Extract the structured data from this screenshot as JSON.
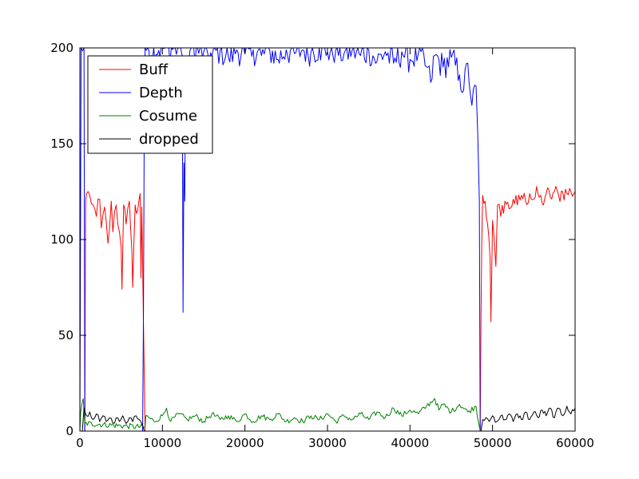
{
  "chart_data": {
    "type": "line",
    "xlim": [
      0,
      60000
    ],
    "ylim": [
      0,
      200
    ],
    "x_ticks": [
      0,
      10000,
      20000,
      30000,
      40000,
      50000,
      60000
    ],
    "y_ticks": [
      0,
      50,
      100,
      150,
      200
    ],
    "legend_position": "upper-left",
    "grid": false,
    "series": [
      {
        "name": "Buff",
        "color": "#ff0000",
        "points": [
          [
            600,
            0
          ],
          [
            700,
            120
          ],
          [
            800,
            124
          ],
          [
            1200,
            123
          ],
          [
            1600,
            118
          ],
          [
            2000,
            112
          ],
          [
            2400,
            121
          ],
          [
            2600,
            106
          ],
          [
            3000,
            117
          ],
          [
            3400,
            98
          ],
          [
            3800,
            120
          ],
          [
            4000,
            104
          ],
          [
            4400,
            118
          ],
          [
            4600,
            108
          ],
          [
            5000,
            96
          ],
          [
            5100,
            74
          ],
          [
            5300,
            118
          ],
          [
            5600,
            108
          ],
          [
            6000,
            120
          ],
          [
            6300,
            94
          ],
          [
            6400,
            75
          ],
          [
            6700,
            118
          ],
          [
            7000,
            115
          ],
          [
            7300,
            124
          ],
          [
            7400,
            80
          ],
          [
            7500,
            117
          ],
          [
            7700,
            57
          ],
          [
            7800,
            30
          ],
          [
            7900,
            0
          ],
          [
            48500,
            0
          ],
          [
            48600,
            60
          ],
          [
            48700,
            100
          ],
          [
            48800,
            123
          ],
          [
            49100,
            120
          ],
          [
            49400,
            108
          ],
          [
            49700,
            90
          ],
          [
            49800,
            57
          ],
          [
            50000,
            110
          ],
          [
            50200,
            100
          ],
          [
            50400,
            86
          ],
          [
            50600,
            118
          ],
          [
            51000,
            112
          ],
          [
            51500,
            120
          ],
          [
            52000,
            116
          ],
          [
            52500,
            121
          ],
          [
            53000,
            118
          ],
          [
            53500,
            123
          ],
          [
            54000,
            120
          ],
          [
            54500,
            124
          ],
          [
            55000,
            121
          ],
          [
            55500,
            124
          ],
          [
            56000,
            119
          ],
          [
            56500,
            124
          ],
          [
            57000,
            122
          ],
          [
            57500,
            125
          ],
          [
            58000,
            123
          ],
          [
            58500,
            125
          ],
          [
            59000,
            124
          ],
          [
            59500,
            125
          ],
          [
            60000,
            125
          ]
        ]
      },
      {
        "name": "Depth",
        "color": "#0000ff",
        "points": [
          [
            0,
            0
          ],
          [
            150,
            200
          ],
          [
            500,
            200
          ],
          [
            600,
            0
          ],
          [
            7600,
            0
          ],
          [
            7700,
            60
          ],
          [
            7800,
            160
          ],
          [
            7900,
            200
          ],
          [
            10000,
            200
          ],
          [
            12000,
            200
          ],
          [
            12400,
            196
          ],
          [
            12500,
            62
          ],
          [
            12600,
            140
          ],
          [
            12700,
            120
          ],
          [
            12800,
            175
          ],
          [
            13000,
            195
          ],
          [
            13500,
            200
          ],
          [
            15000,
            198
          ],
          [
            16000,
            196
          ],
          [
            17000,
            199
          ],
          [
            18000,
            195
          ],
          [
            19000,
            199
          ],
          [
            20000,
            197
          ],
          [
            21000,
            199
          ],
          [
            22000,
            196
          ],
          [
            23000,
            199
          ],
          [
            24000,
            194
          ],
          [
            25000,
            199
          ],
          [
            26000,
            197
          ],
          [
            27000,
            199
          ],
          [
            28000,
            198
          ],
          [
            29000,
            200
          ],
          [
            30000,
            198
          ],
          [
            31000,
            199
          ],
          [
            32000,
            197
          ],
          [
            33000,
            199
          ],
          [
            34000,
            196
          ],
          [
            35000,
            199
          ],
          [
            36000,
            193
          ],
          [
            37000,
            198
          ],
          [
            38000,
            192
          ],
          [
            39000,
            198
          ],
          [
            40000,
            194
          ],
          [
            41000,
            197
          ],
          [
            42000,
            190
          ],
          [
            42500,
            182
          ],
          [
            43000,
            196
          ],
          [
            44000,
            190
          ],
          [
            45000,
            195
          ],
          [
            46000,
            186
          ],
          [
            46500,
            178
          ],
          [
            47000,
            192
          ],
          [
            47500,
            170
          ],
          [
            48000,
            180
          ],
          [
            48200,
            156
          ],
          [
            48400,
            120
          ],
          [
            48500,
            0
          ]
        ]
      },
      {
        "name": "Cosume",
        "color": "#008000",
        "points": [
          [
            0,
            0
          ],
          [
            100,
            10
          ],
          [
            400,
            17
          ],
          [
            600,
            4
          ],
          [
            7900,
            2
          ],
          [
            8000,
            8
          ],
          [
            9000,
            5
          ],
          [
            10000,
            8
          ],
          [
            10500,
            12
          ],
          [
            11000,
            5
          ],
          [
            12000,
            9
          ],
          [
            13000,
            6
          ],
          [
            14000,
            8
          ],
          [
            15000,
            5
          ],
          [
            16000,
            9
          ],
          [
            17000,
            6
          ],
          [
            18000,
            8
          ],
          [
            19000,
            5
          ],
          [
            20000,
            9
          ],
          [
            21000,
            5
          ],
          [
            22000,
            8
          ],
          [
            23000,
            6
          ],
          [
            24000,
            9
          ],
          [
            25000,
            5
          ],
          [
            26000,
            7
          ],
          [
            27000,
            5
          ],
          [
            28000,
            8
          ],
          [
            29000,
            6
          ],
          [
            30000,
            9
          ],
          [
            31000,
            5
          ],
          [
            32000,
            8
          ],
          [
            33000,
            6
          ],
          [
            34000,
            9
          ],
          [
            35000,
            6
          ],
          [
            36000,
            10
          ],
          [
            37000,
            7
          ],
          [
            38000,
            12
          ],
          [
            39000,
            8
          ],
          [
            40000,
            11
          ],
          [
            41000,
            9
          ],
          [
            42000,
            13
          ],
          [
            43000,
            17
          ],
          [
            43500,
            11
          ],
          [
            44000,
            14
          ],
          [
            45000,
            10
          ],
          [
            46000,
            14
          ],
          [
            47000,
            10
          ],
          [
            48000,
            13
          ],
          [
            48500,
            0
          ]
        ]
      },
      {
        "name": "dropped",
        "color": "#000000",
        "points": [
          [
            300,
            0
          ],
          [
            500,
            12
          ],
          [
            800,
            8
          ],
          [
            1200,
            10
          ],
          [
            1600,
            6
          ],
          [
            2000,
            9
          ],
          [
            2400,
            5
          ],
          [
            2800,
            8
          ],
          [
            3200,
            5
          ],
          [
            3600,
            7
          ],
          [
            4000,
            4
          ],
          [
            4400,
            7
          ],
          [
            4800,
            5
          ],
          [
            5200,
            8
          ],
          [
            5600,
            4
          ],
          [
            6000,
            7
          ],
          [
            6400,
            5
          ],
          [
            6800,
            8
          ],
          [
            7200,
            6
          ],
          [
            7600,
            3
          ],
          [
            7800,
            0
          ],
          [
            48600,
            0
          ],
          [
            48800,
            6
          ],
          [
            49200,
            7
          ],
          [
            49600,
            5
          ],
          [
            50000,
            8
          ],
          [
            50500,
            5
          ],
          [
            51000,
            8
          ],
          [
            51500,
            6
          ],
          [
            52000,
            9
          ],
          [
            52500,
            5
          ],
          [
            53000,
            9
          ],
          [
            53500,
            6
          ],
          [
            54000,
            10
          ],
          [
            54500,
            6
          ],
          [
            55000,
            10
          ],
          [
            55500,
            7
          ],
          [
            56000,
            11
          ],
          [
            56500,
            8
          ],
          [
            57000,
            12
          ],
          [
            57500,
            7
          ],
          [
            58000,
            12
          ],
          [
            58500,
            8
          ],
          [
            59000,
            13
          ],
          [
            59500,
            9
          ],
          [
            60000,
            12
          ]
        ]
      }
    ]
  }
}
